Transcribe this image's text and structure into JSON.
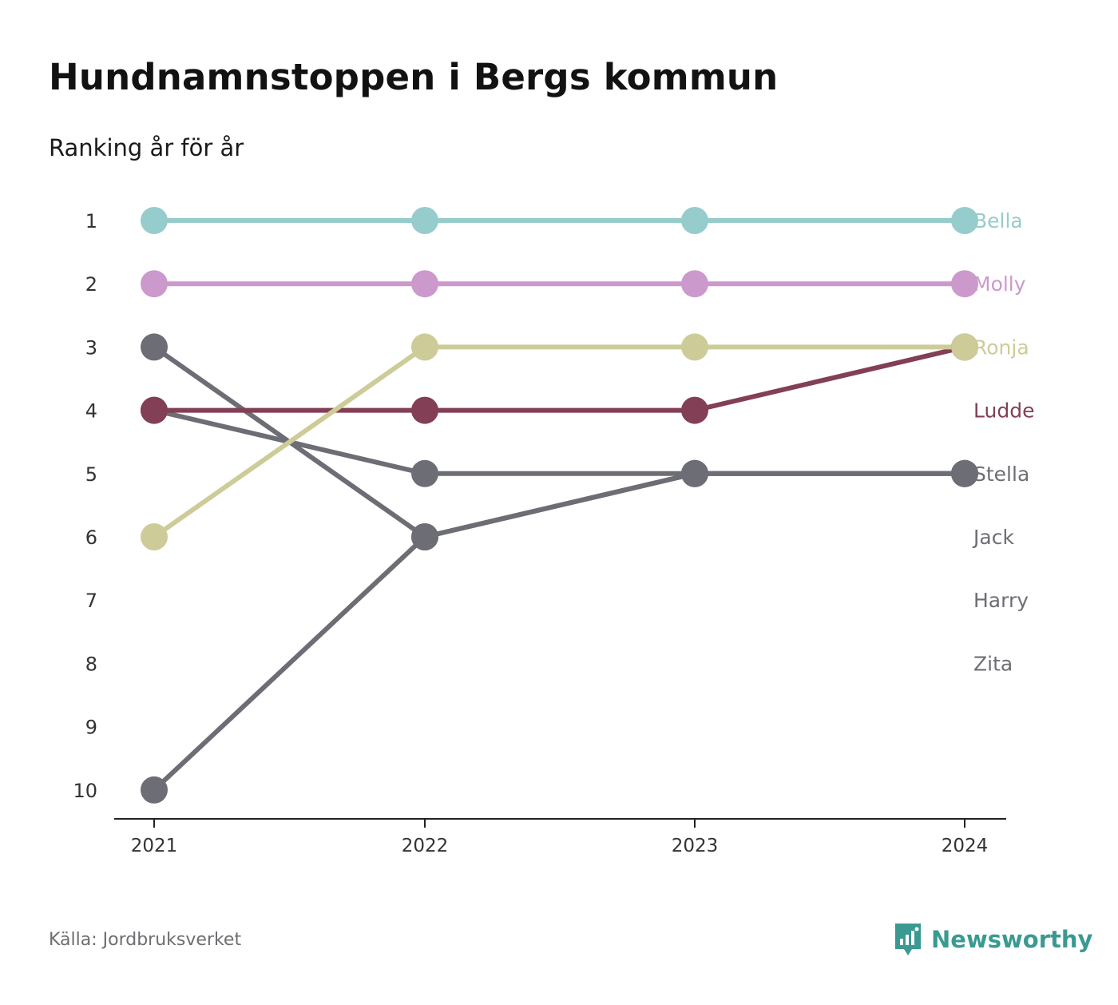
{
  "title": "Hundnamnstoppen i Bergs kommun",
  "subtitle": "Ranking år för år",
  "source": "Källa: Jordbruksverket",
  "brand": "Newsworthy",
  "brand_color": "#3a9a91",
  "chart_data": {
    "type": "line",
    "title": "Hundnamnstoppen i Bergs kommun",
    "subtitle": "Ranking år för år",
    "x": [
      "2021",
      "2022",
      "2023",
      "2024"
    ],
    "y_ticks": [
      1,
      2,
      3,
      4,
      5,
      6,
      7,
      8,
      9,
      10
    ],
    "y_reversed": true,
    "ylim": [
      1,
      10
    ],
    "grid": false,
    "series": [
      {
        "name": "Bella",
        "color": "#96cccb",
        "values": [
          1,
          1,
          1,
          1
        ]
      },
      {
        "name": "Molly",
        "color": "#cc99cc",
        "values": [
          2,
          2,
          2,
          2
        ]
      },
      {
        "name": "Ronja",
        "color": "#cdcc99",
        "values": [
          6,
          3,
          3,
          3
        ]
      },
      {
        "name": "Ludde",
        "color": "#823f55",
        "values": [
          4,
          4,
          4,
          3
        ]
      },
      {
        "name": "Stella",
        "color": "#6d6d75",
        "values": [
          4,
          5,
          5,
          5
        ]
      },
      {
        "name": "Jack",
        "color": "#6d6d75",
        "values": [
          3,
          6,
          5,
          5
        ]
      },
      {
        "name": "Harry",
        "color": "#6d6d75",
        "values": [
          10,
          6,
          5,
          5
        ]
      },
      {
        "name": "Zita",
        "color": "#6d6d75",
        "values": [
          null,
          null,
          null,
          null
        ]
      }
    ]
  }
}
